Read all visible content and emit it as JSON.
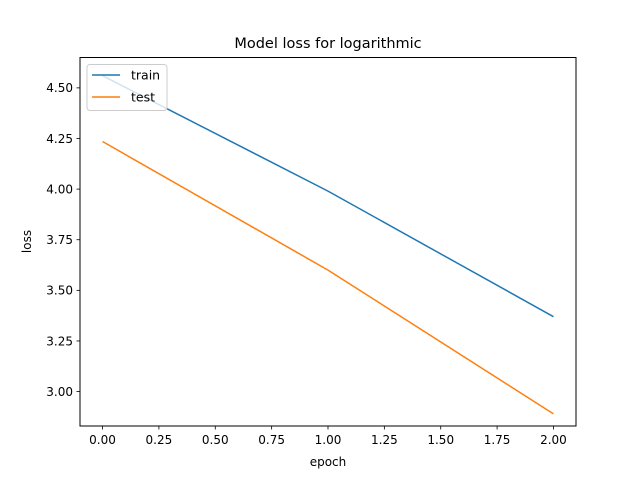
{
  "chart_data": {
    "type": "line",
    "title": "Model loss for logarithmic",
    "xlabel": "epoch",
    "ylabel": "loss",
    "x": [
      0,
      1,
      2
    ],
    "series": [
      {
        "name": "train",
        "color": "#1f77b4",
        "values": [
          4.56,
          3.99,
          3.37
        ]
      },
      {
        "name": "test",
        "color": "#ff7f0e",
        "values": [
          4.235,
          3.6,
          2.89
        ]
      }
    ],
    "xlim": [
      -0.1,
      2.1
    ],
    "ylim": [
      2.83,
      4.65
    ],
    "xticks": [
      0.0,
      0.25,
      0.5,
      0.75,
      1.0,
      1.25,
      1.5,
      1.75,
      2.0
    ],
    "xtick_labels": [
      "0.00",
      "0.25",
      "0.50",
      "0.75",
      "1.00",
      "1.25",
      "1.50",
      "1.75",
      "2.00"
    ],
    "yticks": [
      3.0,
      3.25,
      3.5,
      3.75,
      4.0,
      4.25,
      4.5
    ],
    "ytick_labels": [
      "3.00",
      "3.25",
      "3.50",
      "3.75",
      "4.00",
      "4.25",
      "4.50"
    ],
    "grid": false,
    "legend_position": "top-left"
  }
}
